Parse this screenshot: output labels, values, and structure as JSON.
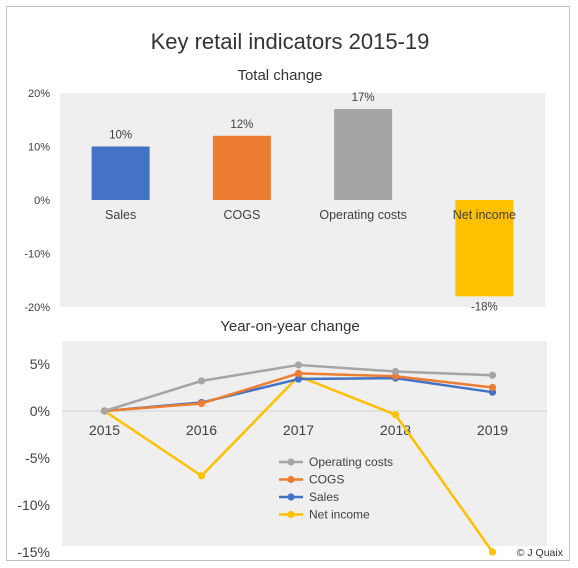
{
  "title": "Key retail indicators 2015-19",
  "credit": "© J Quaix",
  "colors": {
    "plot_bg": "#efefef",
    "Sales": "#4472c4",
    "COGS": "#ed7d31",
    "Operating costs": "#a5a5a5",
    "Net income": "#ffc000"
  },
  "chart_data": [
    {
      "type": "bar",
      "title": "Total change",
      "categories": [
        "Sales",
        "COGS",
        "Operating costs",
        "Net income"
      ],
      "values": [
        0.1,
        0.12,
        0.17,
        -0.18
      ],
      "data_labels": [
        "10%",
        "12%",
        "17%",
        "-18%"
      ],
      "ylim": [
        -0.2,
        0.2
      ],
      "yticks": [
        0.2,
        0.1,
        0.0,
        -0.1,
        -0.2
      ],
      "ytick_labels": [
        "20%",
        "10%",
        "0%",
        "-10%",
        "-20%"
      ],
      "grid": false
    },
    {
      "type": "line",
      "title": "Year-on-year change",
      "x": [
        "2015",
        "2016",
        "2017",
        "2018",
        "2019"
      ],
      "ylim": [
        -0.15,
        0.05
      ],
      "yticks": [
        0.05,
        0.0,
        -0.05,
        -0.1,
        -0.15
      ],
      "ytick_labels": [
        "5%",
        "0%",
        "-5%",
        "-10%",
        "-15%"
      ],
      "series": [
        {
          "name": "Operating costs",
          "values": [
            0.0,
            0.032,
            0.049,
            0.042,
            0.038
          ]
        },
        {
          "name": "COGS",
          "values": [
            0.0,
            0.008,
            0.04,
            0.037,
            0.025
          ]
        },
        {
          "name": "Sales",
          "values": [
            0.0,
            0.009,
            0.034,
            0.035,
            0.02
          ]
        },
        {
          "name": "Net income",
          "values": [
            0.0,
            -0.069,
            0.037,
            -0.004,
            -0.15
          ]
        }
      ],
      "legend_position": "inside lower-center",
      "grid": false
    }
  ]
}
